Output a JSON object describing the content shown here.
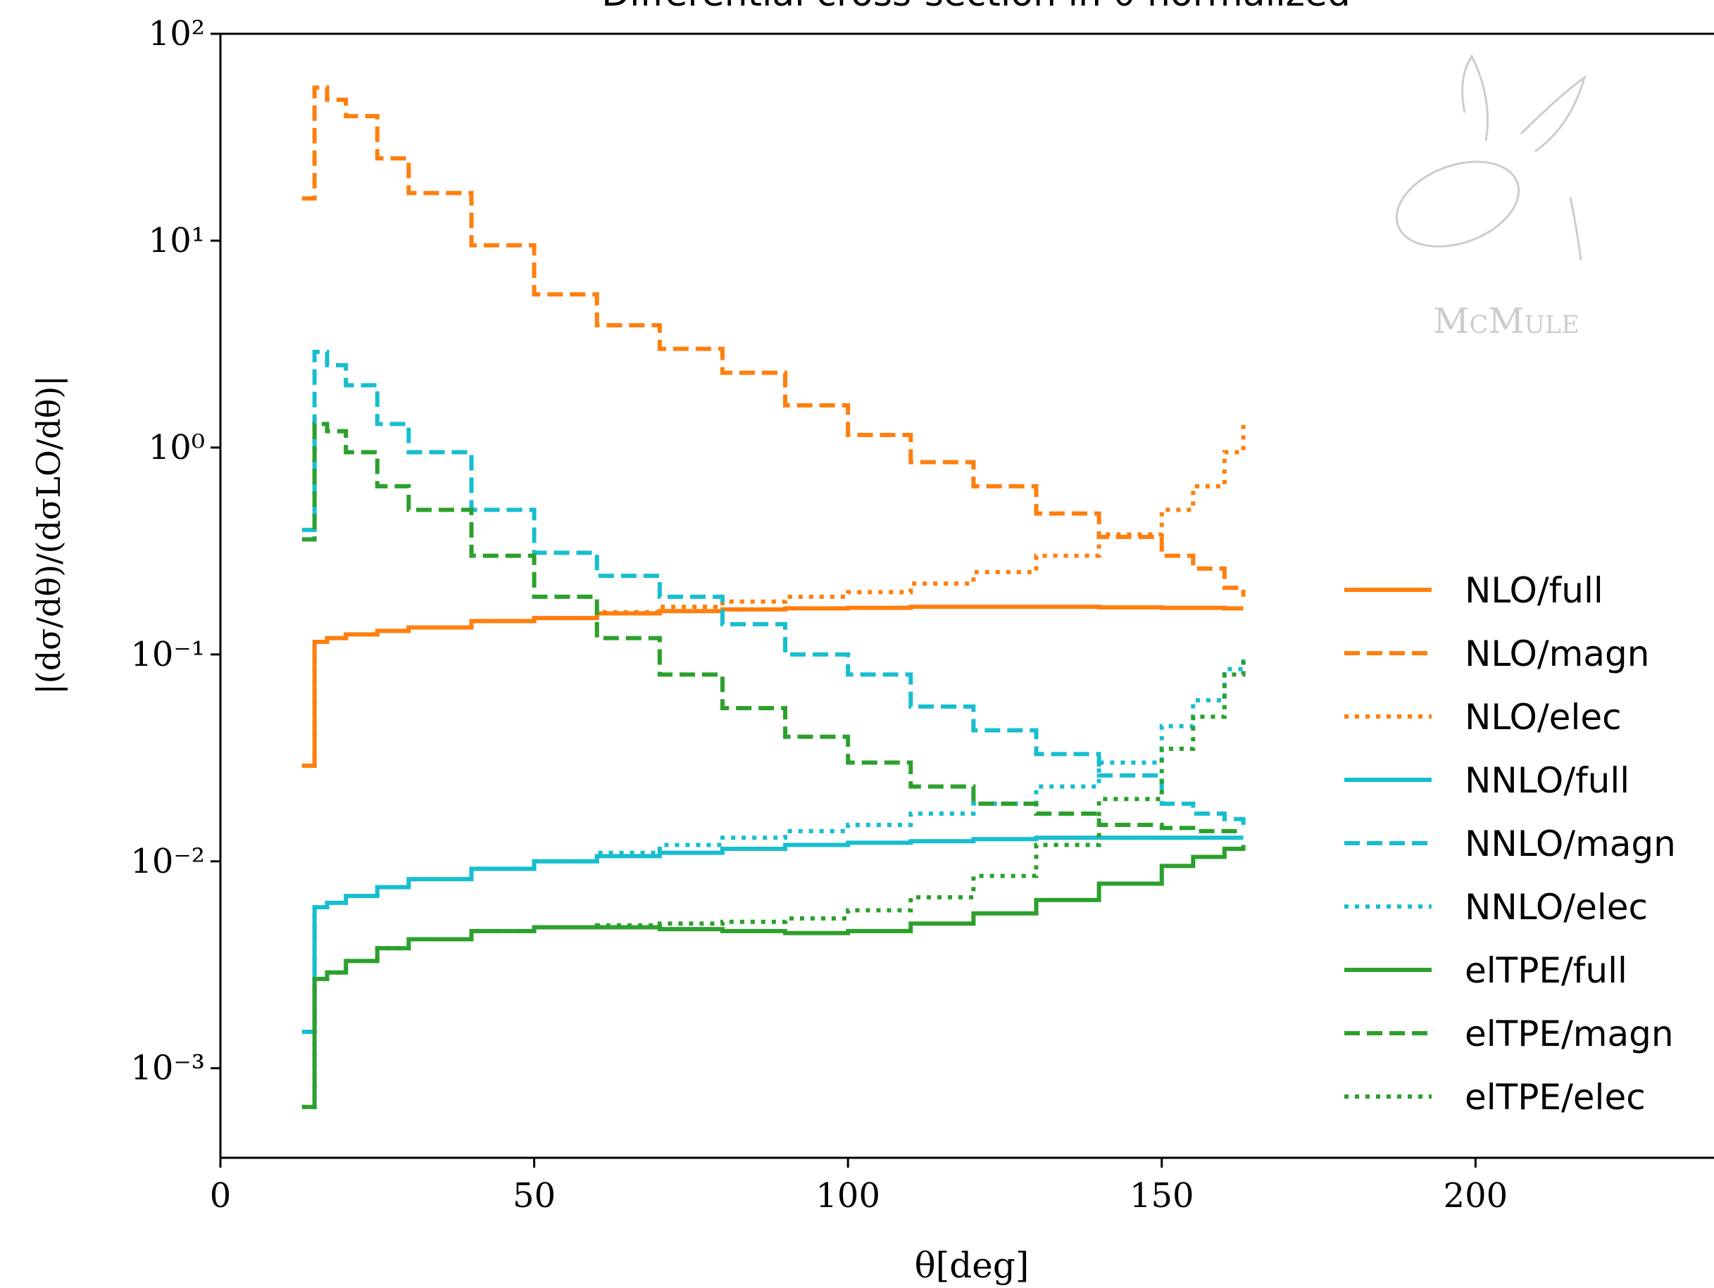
{
  "chart_data": {
    "type": "step",
    "title": "Differential cross-section in θ normalized",
    "xlabel": "θ[deg]",
    "ylabel": "|(dσ/dθ)/(dσLO/dθ)|",
    "watermark": "McMule",
    "xlim": [
      0,
      238
    ],
    "xticks": [
      0,
      50,
      100,
      150,
      200
    ],
    "ylim": [
      0.000369,
      100
    ],
    "ylog": true,
    "yticks": [
      {
        "value": 0.001,
        "label": "10⁻³"
      },
      {
        "value": 0.01,
        "label": "10⁻²"
      },
      {
        "value": 0.1,
        "label": "10⁻¹"
      },
      {
        "value": 1,
        "label": "10⁰"
      },
      {
        "value": 10,
        "label": "10¹"
      },
      {
        "value": 100,
        "label": "10²"
      }
    ],
    "legend": "right",
    "x": [
      13,
      15,
      17,
      20,
      25,
      30,
      40,
      50,
      60,
      70,
      80,
      90,
      100,
      110,
      120,
      130,
      140,
      150,
      155,
      160,
      163
    ],
    "series": [
      {
        "name": "NLO/full",
        "color": "#ff7f0e",
        "linestyle": "solid",
        "values": [
          0.029,
          0.115,
          0.12,
          0.125,
          0.13,
          0.135,
          0.145,
          0.15,
          0.158,
          0.162,
          0.165,
          0.167,
          0.168,
          0.17,
          0.17,
          0.17,
          0.169,
          0.168,
          0.168,
          0.167,
          0.167
        ]
      },
      {
        "name": "NLO/magn",
        "color": "#ff7f0e",
        "linestyle": "dashed",
        "values": [
          16,
          55,
          48,
          40,
          25,
          17,
          9.5,
          5.5,
          3.9,
          3.0,
          2.3,
          1.6,
          1.15,
          0.85,
          0.65,
          0.48,
          0.37,
          0.3,
          0.26,
          0.21,
          0.19
        ]
      },
      {
        "name": "NLO/elec",
        "color": "#ff7f0e",
        "linestyle": "dotted",
        "values": [
          0.029,
          0.115,
          0.12,
          0.125,
          0.13,
          0.135,
          0.145,
          0.15,
          0.16,
          0.17,
          0.18,
          0.19,
          0.2,
          0.22,
          0.25,
          0.3,
          0.38,
          0.5,
          0.65,
          0.95,
          1.3
        ]
      },
      {
        "name": "NNLO/full",
        "color": "#17becf",
        "linestyle": "solid",
        "values": [
          0.0015,
          0.006,
          0.0063,
          0.0068,
          0.0075,
          0.0082,
          0.0092,
          0.01,
          0.0106,
          0.011,
          0.0115,
          0.012,
          0.0123,
          0.0125,
          0.0128,
          0.013,
          0.013,
          0.013,
          0.013,
          0.013,
          0.013
        ]
      },
      {
        "name": "NNLO/magn",
        "color": "#17becf",
        "linestyle": "dashed",
        "values": [
          0.4,
          2.9,
          2.5,
          2.0,
          1.3,
          0.95,
          0.5,
          0.31,
          0.24,
          0.19,
          0.14,
          0.1,
          0.08,
          0.056,
          0.043,
          0.033,
          0.026,
          0.019,
          0.017,
          0.016,
          0.015
        ]
      },
      {
        "name": "NNLO/elec",
        "color": "#17becf",
        "linestyle": "dotted",
        "values": [
          0.0015,
          0.006,
          0.0063,
          0.0068,
          0.0075,
          0.0082,
          0.0092,
          0.01,
          0.011,
          0.012,
          0.013,
          0.014,
          0.015,
          0.017,
          0.019,
          0.023,
          0.03,
          0.045,
          0.06,
          0.085,
          0.1
        ]
      },
      {
        "name": "elTPE/full",
        "color": "#2ca02c",
        "linestyle": "solid",
        "values": [
          0.00065,
          0.0027,
          0.0029,
          0.0033,
          0.0038,
          0.0042,
          0.0046,
          0.0048,
          0.0048,
          0.0047,
          0.0046,
          0.0045,
          0.0046,
          0.005,
          0.0056,
          0.0065,
          0.0078,
          0.0095,
          0.0105,
          0.0115,
          0.012
        ]
      },
      {
        "name": "elTPE/magn",
        "color": "#2ca02c",
        "linestyle": "dashed",
        "values": [
          0.36,
          1.3,
          1.2,
          0.95,
          0.65,
          0.5,
          0.3,
          0.19,
          0.12,
          0.08,
          0.055,
          0.04,
          0.03,
          0.023,
          0.019,
          0.017,
          0.015,
          0.0145,
          0.014,
          0.014,
          0.014
        ]
      },
      {
        "name": "elTPE/elec",
        "color": "#2ca02c",
        "linestyle": "dotted",
        "values": [
          0.00065,
          0.0027,
          0.0029,
          0.0033,
          0.0038,
          0.0042,
          0.0046,
          0.0048,
          0.0049,
          0.005,
          0.0051,
          0.0053,
          0.0058,
          0.0067,
          0.0085,
          0.012,
          0.02,
          0.035,
          0.05,
          0.08,
          0.1
        ]
      }
    ]
  }
}
